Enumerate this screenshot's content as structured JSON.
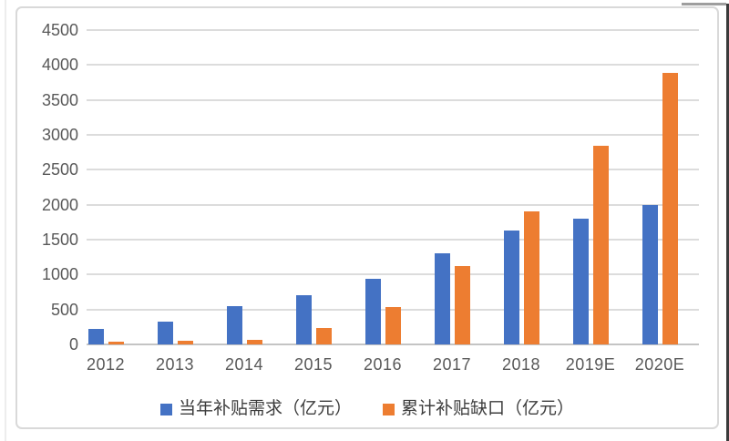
{
  "chart_data": {
    "type": "bar",
    "title": "",
    "xlabel": "",
    "ylabel": "",
    "categories": [
      "2012",
      "2013",
      "2014",
      "2015",
      "2016",
      "2017",
      "2018",
      "2019E",
      "2020E"
    ],
    "series": [
      {
        "name": "当年补贴需求（亿元）",
        "color": "#4472C4",
        "values": [
          220,
          330,
          550,
          700,
          940,
          1300,
          1630,
          1800,
          2000
        ]
      },
      {
        "name": "累计补贴缺口（亿元）",
        "color": "#ED7D31",
        "values": [
          40,
          55,
          65,
          230,
          530,
          1120,
          1900,
          2840,
          3890
        ]
      }
    ],
    "ylim": [
      0,
      4500
    ],
    "ytick_step": 500,
    "ytick_labels": [
      "0",
      "500",
      "1000",
      "1500",
      "2000",
      "2500",
      "3000",
      "3500",
      "4000",
      "4500"
    ],
    "grid": true,
    "legend_position": "bottom",
    "colors": {
      "series_blue": "#4472C4",
      "series_orange": "#ED7D31",
      "axis_text": "#595959",
      "legend_text": "#3d3d3d",
      "gridline": "#dcdcdc",
      "panel_border": "#d9d9d9"
    }
  }
}
